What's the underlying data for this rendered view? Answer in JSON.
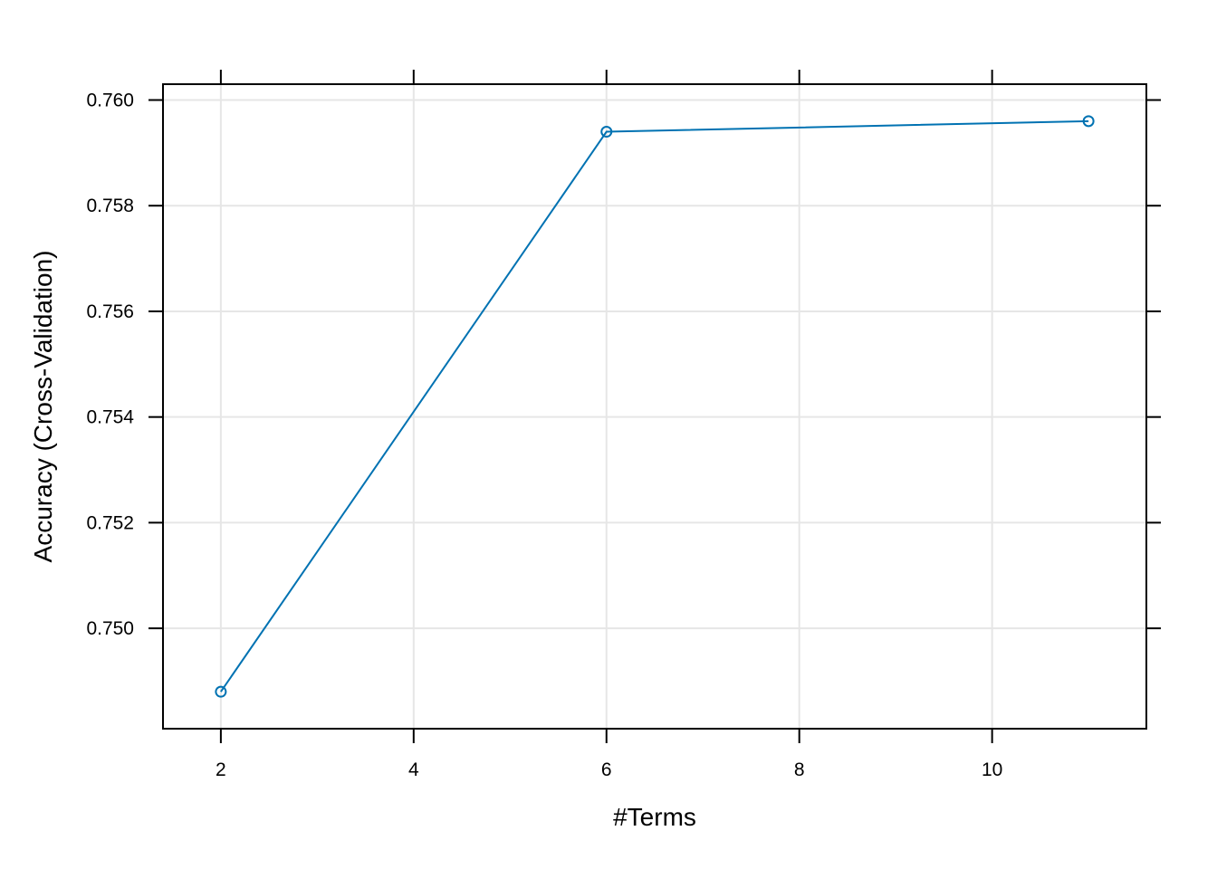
{
  "chart_data": {
    "type": "line",
    "title": "",
    "xlabel": "#Terms",
    "ylabel": "Accuracy (Cross-Validation)",
    "x": [
      2,
      6,
      11
    ],
    "series": [
      {
        "values": [
          0.7488,
          0.7594,
          0.7596
        ]
      }
    ],
    "xlim": [
      1.4,
      11.6
    ],
    "ylim": [
      0.7481,
      0.7603
    ],
    "xticks": [
      2,
      4,
      6,
      8,
      10
    ],
    "xtick_labels": [
      "2",
      "4",
      "6",
      "8",
      "10"
    ],
    "yticks": [
      0.75,
      0.752,
      0.754,
      0.756,
      0.758,
      0.76
    ],
    "ytick_labels": [
      "0.750",
      "0.752",
      "0.754",
      "0.756",
      "0.758",
      "0.760"
    ],
    "grid": true,
    "marker": "open-circle",
    "colors": {
      "line": "#0072B2",
      "grid": "#E6E6E6",
      "frame": "#000000"
    }
  }
}
